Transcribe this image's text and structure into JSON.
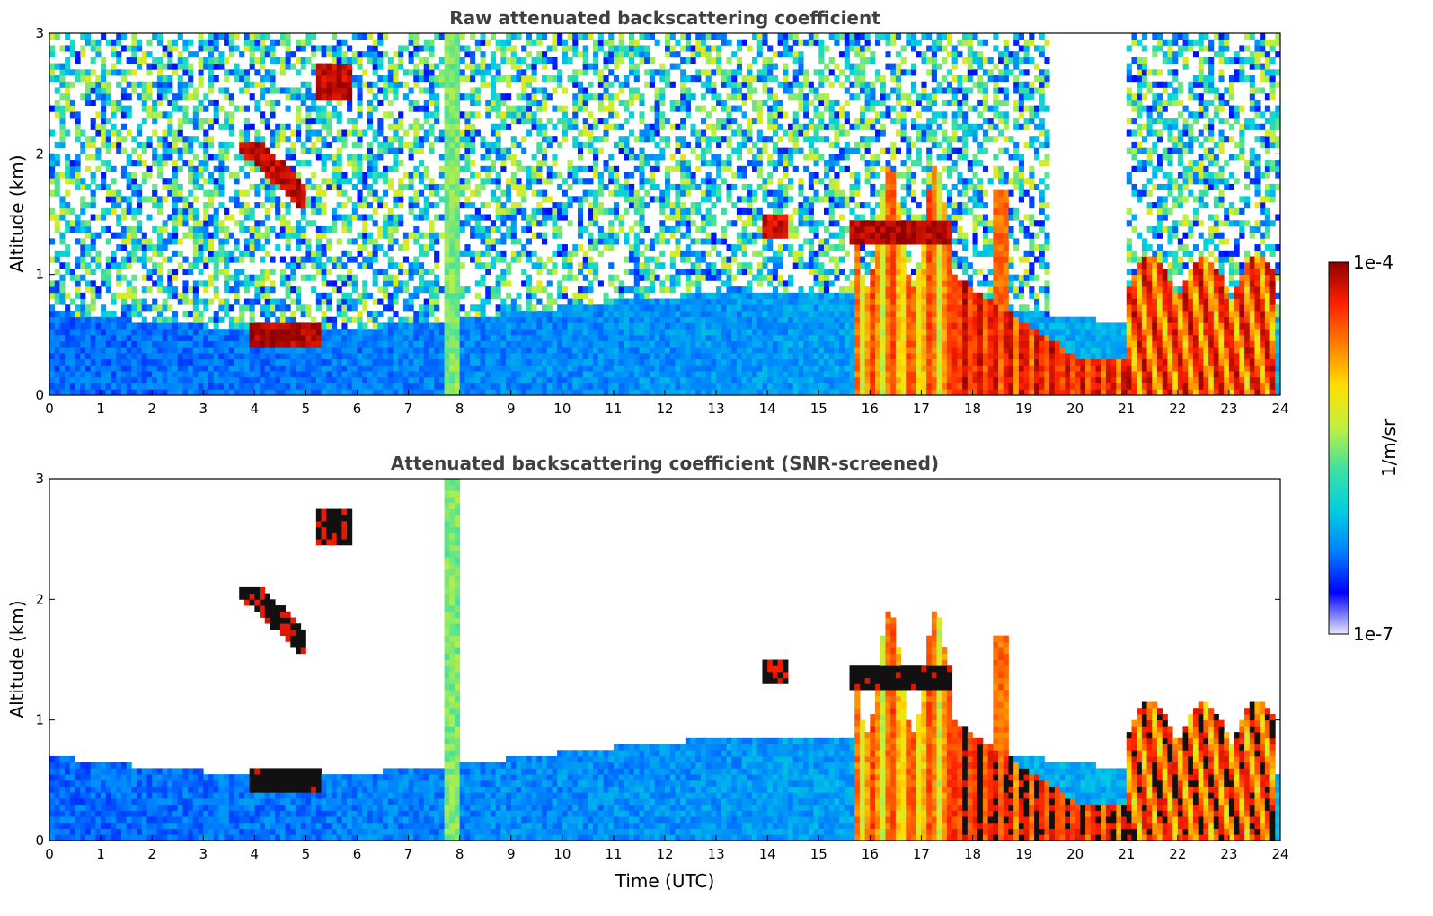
{
  "chart_data": [
    {
      "type": "heatmap",
      "title": "Raw attenuated backscattering coefficient",
      "xlabel": "",
      "ylabel": "Altitude (km)",
      "xlim": [
        0,
        24
      ],
      "ylim": [
        0,
        3
      ],
      "xticks": [
        "0",
        "1",
        "2",
        "3",
        "4",
        "5",
        "6",
        "7",
        "8",
        "9",
        "10",
        "11",
        "12",
        "13",
        "14",
        "15",
        "16",
        "17",
        "18",
        "19",
        "20",
        "21",
        "22",
        "23",
        "24"
      ],
      "yticks": [
        "0",
        "1",
        "2",
        "3"
      ],
      "grid": false,
      "features": [
        {
          "name": "boundary-layer",
          "t": [
            0,
            24
          ],
          "z": [
            0,
            0.7
          ]
        },
        {
          "name": "cloud",
          "t": [
            3.9,
            5.3
          ],
          "z": [
            0.4,
            0.6
          ]
        },
        {
          "name": "cloud",
          "t": [
            3.7,
            5.0
          ],
          "z": [
            1.5,
            2.2
          ]
        },
        {
          "name": "cloud",
          "t": [
            5.2,
            6.0
          ],
          "z": [
            2.4,
            2.8
          ]
        },
        {
          "name": "fall-streak",
          "t": [
            7.7,
            7.95
          ],
          "z": [
            0,
            3
          ]
        },
        {
          "name": "cloud",
          "t": [
            13.9,
            14.4
          ],
          "z": [
            1.3,
            1.5
          ]
        },
        {
          "name": "precipitation",
          "t": [
            15.7,
            17.6
          ],
          "z": [
            0,
            2.2
          ]
        },
        {
          "name": "cloud",
          "t": [
            17.6,
            21.0
          ],
          "z": [
            0.1,
            1.0
          ]
        },
        {
          "name": "cloud",
          "t": [
            21.0,
            23.9
          ],
          "z": [
            0.1,
            1.3
          ]
        }
      ]
    },
    {
      "type": "heatmap",
      "title": "Attenuated backscattering coefficient (SNR-screened)",
      "xlabel": "Time (UTC)",
      "ylabel": "Altitude (km)",
      "xlim": [
        0,
        24
      ],
      "ylim": [
        0,
        3
      ],
      "xticks": [
        "0",
        "1",
        "2",
        "3",
        "4",
        "5",
        "6",
        "7",
        "8",
        "9",
        "10",
        "11",
        "12",
        "13",
        "14",
        "15",
        "16",
        "17",
        "18",
        "19",
        "20",
        "21",
        "22",
        "23",
        "24"
      ],
      "yticks": [
        "0",
        "1",
        "2",
        "3"
      ],
      "grid": false
    }
  ],
  "colorbar": {
    "label": "1/m/sr",
    "max_label": "1e-4",
    "min_label": "1e-7",
    "scale": "log",
    "colormap": [
      "#e8e8f8",
      "#0000ff",
      "#0080ff",
      "#00d0e0",
      "#40e0a0",
      "#c0f040",
      "#ffe000",
      "#ff8000",
      "#ff2000",
      "#900000"
    ]
  }
}
